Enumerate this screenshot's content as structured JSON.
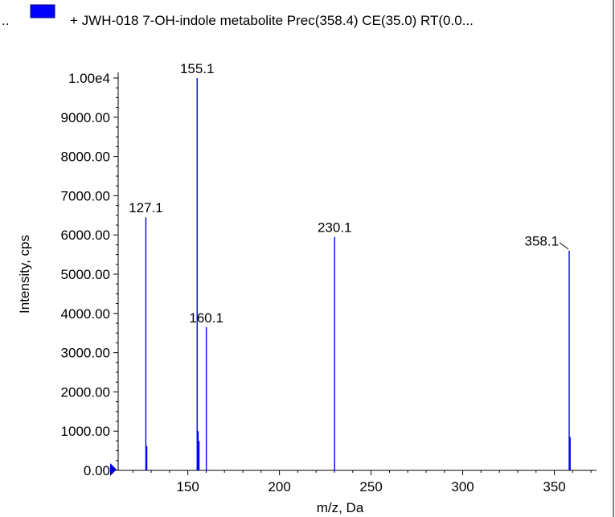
{
  "header": {
    "leading_ellipsis": "..",
    "legend_swatch_color": "#0000ff",
    "legend_text": "+ JWH-018 7-OH-indole metabolite Prec(358.4) CE(35.0) RT(0.0..."
  },
  "chart_data": {
    "type": "bar",
    "title": "+ JWH-018 7-OH-indole metabolite Prec(358.4) CE(35.0) RT(0.0...",
    "xlabel": "m/z, Da",
    "ylabel": "Intensity, cps",
    "xlim": [
      112,
      373
    ],
    "ylim": [
      0,
      10000
    ],
    "x_ticks": [
      "150",
      "200",
      "250",
      "300",
      "350"
    ],
    "y_ticks": [
      "0.00",
      "1000.00",
      "2000.00",
      "3000.00",
      "4000.00",
      "5000.00",
      "6000.00",
      "7000.00",
      "8000.00",
      "9000.00",
      "1.00e4"
    ],
    "series_color": "#0000ff",
    "peaks": [
      {
        "x": 127.1,
        "y": 6450
      },
      {
        "x": 127.6,
        "y": 620
      },
      {
        "x": 155.1,
        "y": 10000
      },
      {
        "x": 155.6,
        "y": 1000
      },
      {
        "x": 156.1,
        "y": 750
      },
      {
        "x": 160.1,
        "y": 3650
      },
      {
        "x": 230.1,
        "y": 5950
      },
      {
        "x": 358.1,
        "y": 5600
      },
      {
        "x": 358.6,
        "y": 850
      }
    ],
    "peak_labels": [
      {
        "x": 127.1,
        "y": 6450,
        "text": "127.1"
      },
      {
        "x": 155.1,
        "y": 10000,
        "text": "155.1"
      },
      {
        "x": 160.1,
        "y": 3650,
        "text": "160.1"
      },
      {
        "x": 230.1,
        "y": 5950,
        "text": "230.1"
      },
      {
        "x": 358.1,
        "y": 5600,
        "text": "358.1"
      }
    ]
  }
}
